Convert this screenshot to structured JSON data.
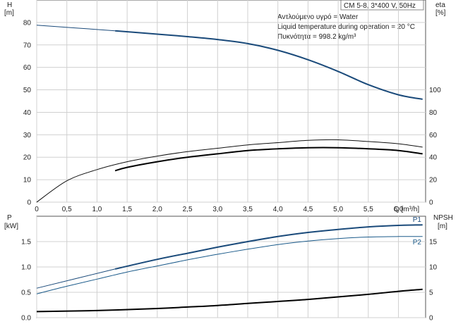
{
  "header": {
    "model": "CM 5-8, 3*400 V, 50Hz",
    "notes": [
      "Αντλούμενο υγρό = Water",
      "Liquid temperature during operation = 20 °C",
      "Πυκνότητα = 998.2 kg/m³"
    ]
  },
  "chart_data": [
    {
      "type": "line",
      "panel": "top",
      "x_ticks": [
        "0",
        "0,5",
        "1,0",
        "1,5",
        "2,0",
        "2,5",
        "3,0",
        "3,5",
        "4,0",
        "4,5",
        "5,0",
        "5,5",
        "6,0"
      ],
      "xlabel": "Q [m³/h]",
      "xlim": [
        0,
        6.45
      ],
      "left_axis": {
        "label_top": "H",
        "label_unit": "[m]",
        "ylim": [
          0,
          90
        ],
        "ticks": [
          "0",
          "10",
          "20",
          "30",
          "40",
          "50",
          "60",
          "70",
          "80"
        ]
      },
      "right_axis": {
        "label_top": "eta",
        "label_unit": "[%]",
        "ylim": [
          0,
          180
        ],
        "ticks": [
          "0",
          "20",
          "40",
          "60",
          "80",
          "100"
        ]
      },
      "grid": true,
      "series": [
        {
          "name": "",
          "axis": "left",
          "color": "#1a4a7a",
          "width": 2,
          "x": [
            0,
            1.3,
            2.0,
            2.5,
            3.0,
            3.5,
            4.0,
            4.5,
            5.0,
            5.5,
            6.0,
            6.4
          ],
          "y": [
            78.8,
            76.3,
            74.8,
            73.7,
            72.4,
            70.6,
            67.6,
            63.4,
            58.2,
            52.3,
            47.8,
            45.8
          ],
          "dashed_before": 1.3
        },
        {
          "name": "",
          "axis": "right",
          "color": "#111111",
          "width": 1,
          "x": [
            0,
            0.5,
            1.0,
            1.5,
            2.0,
            2.5,
            3.0,
            3.5,
            4.0,
            4.5,
            5.0,
            5.5,
            6.0,
            6.4
          ],
          "y": [
            0,
            19,
            29,
            36,
            41,
            45,
            48,
            51,
            53,
            55,
            55.5,
            54,
            52,
            49
          ]
        },
        {
          "name": "",
          "axis": "right",
          "color": "#000000",
          "width": 2,
          "x": [
            1.3,
            1.5,
            2.0,
            2.5,
            3.0,
            3.5,
            4.0,
            4.5,
            5.0,
            5.5,
            6.0,
            6.4
          ],
          "y": [
            28,
            31,
            36,
            40,
            43,
            46,
            47.5,
            48.5,
            48.5,
            47.5,
            46,
            43
          ]
        }
      ]
    },
    {
      "type": "line",
      "panel": "bottom",
      "xlim": [
        0,
        6.45
      ],
      "left_axis": {
        "label_top": "P",
        "label_unit": "[kW]",
        "ylim": [
          0,
          2.0
        ],
        "ticks": [
          "0.0",
          "0.5",
          "1.0",
          "1.5"
        ]
      },
      "right_axis": {
        "label_top": "NPSH",
        "label_unit": "[m]",
        "ylim": [
          0,
          20
        ],
        "ticks": [
          "0",
          "5",
          "10",
          "15"
        ]
      },
      "grid": true,
      "series": [
        {
          "name": "P1",
          "axis": "left",
          "color": "#1a4a7a",
          "width": 2,
          "x": [
            0,
            1.3,
            2.0,
            2.5,
            3.0,
            3.5,
            4.0,
            4.5,
            5.0,
            5.5,
            6.0,
            6.4
          ],
          "y": [
            0.58,
            0.96,
            1.15,
            1.27,
            1.39,
            1.5,
            1.6,
            1.68,
            1.74,
            1.79,
            1.82,
            1.83
          ],
          "dashed_before": 1.3
        },
        {
          "name": "P2",
          "axis": "left",
          "color": "#1a5a8a",
          "width": 1,
          "x": [
            0,
            0.5,
            1.0,
            1.5,
            2.0,
            2.5,
            3.0,
            3.5,
            4.0,
            4.5,
            5.0,
            5.5,
            6.0,
            6.4
          ],
          "y": [
            0.47,
            0.62,
            0.76,
            0.9,
            1.02,
            1.14,
            1.25,
            1.35,
            1.44,
            1.51,
            1.56,
            1.59,
            1.6,
            1.6
          ]
        },
        {
          "name": "",
          "axis": "right",
          "color": "#000000",
          "width": 2,
          "x": [
            0,
            1.0,
            2.0,
            2.5,
            3.0,
            3.5,
            4.0,
            4.5,
            5.0,
            5.5,
            6.0,
            6.4
          ],
          "y": [
            1.2,
            1.4,
            1.8,
            2.1,
            2.4,
            2.8,
            3.2,
            3.6,
            4.1,
            4.6,
            5.2,
            5.6
          ]
        }
      ]
    }
  ]
}
